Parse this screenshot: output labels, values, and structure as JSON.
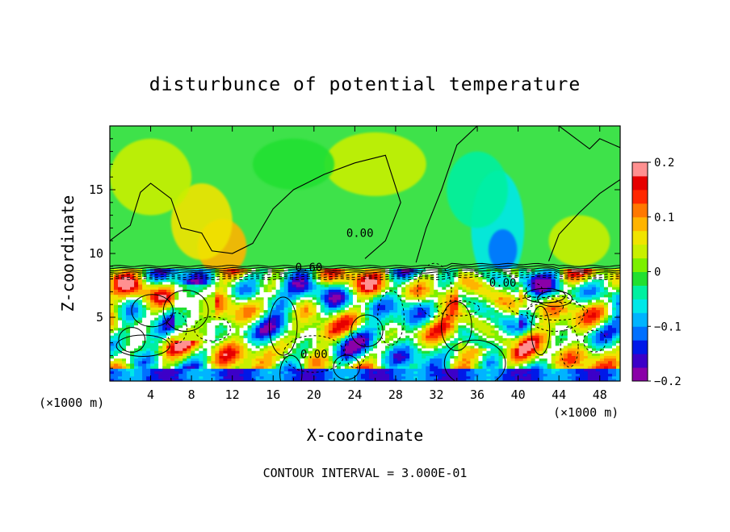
{
  "chart_data": {
    "type": "heatmap",
    "title": "disturbunce of potential temperature",
    "xlabel": "X-coordinate",
    "ylabel": "Z-coordinate",
    "x_unit_left": "(×1000 m)",
    "x_unit_right": "(×1000 m)",
    "xlim": [
      0,
      50
    ],
    "ylim": [
      0,
      20
    ],
    "xticks": [
      4,
      8,
      12,
      16,
      20,
      24,
      28,
      32,
      36,
      40,
      44,
      48
    ],
    "yticks": [
      5,
      10,
      15
    ],
    "colorbar": {
      "range": [
        -0.2,
        0.2
      ],
      "tick_values": [
        -0.2,
        -0.1,
        0,
        0.1,
        0.2
      ],
      "tick_labels": [
        "−0.2",
        "−0.1",
        "0",
        "0.1",
        "0.2"
      ],
      "colors": [
        "#8a00a8",
        "#3c00c8",
        "#0018e8",
        "#0070ff",
        "#00b4ff",
        "#00e8e8",
        "#00f0a0",
        "#22e030",
        "#7cf000",
        "#c8f000",
        "#f0e400",
        "#ffb400",
        "#ff7800",
        "#ff2800",
        "#e60000",
        "#ff9090"
      ]
    },
    "contour_labels": [
      {
        "text": "0.60",
        "x": 19.5,
        "z": 8.6
      },
      {
        "text": "0.00",
        "x": 24.5,
        "z": 11.3
      },
      {
        "text": "0.00",
        "x": 20.0,
        "z": 1.8
      },
      {
        "text": "0.00",
        "x": 38.5,
        "z": 7.4
      }
    ],
    "contour_interval_text": "CONTOUR INTERVAL = 3.000E-01"
  }
}
